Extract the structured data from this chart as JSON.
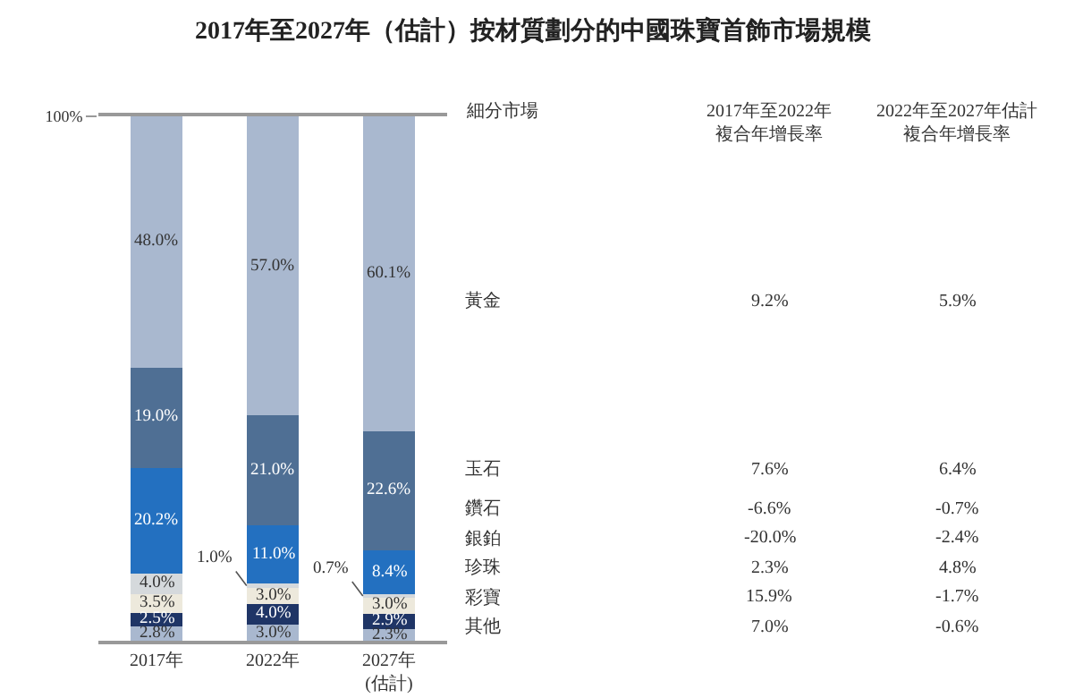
{
  "chart_data": {
    "type": "bar",
    "title": "2017年至2027年（估計）按材質劃分的中國珠寶首飾市場規模",
    "categories": [
      "2017年",
      "2022年",
      "2027年\n(估計)"
    ],
    "stacked": true,
    "series": [
      {
        "name": "其他",
        "color": "#a9b8cf",
        "values": [
          2.8,
          3.0,
          2.3
        ],
        "value_labels": [
          "2.8%",
          "3.0%",
          "2.3%"
        ]
      },
      {
        "name": "彩寶",
        "color": "#1f3566",
        "values": [
          2.5,
          4.0,
          2.9
        ],
        "value_labels": [
          "2.5%",
          "4.0%",
          "2.9%"
        ]
      },
      {
        "name": "珍珠",
        "color": "#ede9dc",
        "values": [
          3.5,
          3.0,
          3.0
        ],
        "value_labels": [
          "3.5%",
          "3.0%",
          "3.0%"
        ]
      },
      {
        "name": "銀鉑",
        "color": "#d5d9dc",
        "values": [
          4.0,
          1.0,
          0.7
        ],
        "value_labels": [
          "4.0%",
          "1.0%",
          "0.7%"
        ]
      },
      {
        "name": "鑽石",
        "color": "#2370c0",
        "values": [
          20.2,
          11.0,
          8.4
        ],
        "value_labels": [
          "20.2%",
          "11.0%",
          "8.4%"
        ]
      },
      {
        "name": "玉石",
        "color": "#4f6f94",
        "values": [
          19.0,
          21.0,
          22.6
        ],
        "value_labels": [
          "19.0%",
          "21.0%",
          "22.6%"
        ]
      },
      {
        "name": "黃金",
        "color": "#a9b8cf",
        "values": [
          48.0,
          57.0,
          60.1
        ],
        "value_labels": [
          "48.0%",
          "57.0%",
          "60.1%"
        ]
      }
    ],
    "ylim": [
      0,
      100
    ],
    "yticks": [
      {
        "value": 100,
        "label": "100%"
      }
    ],
    "legend": false,
    "annotations": [
      "細分市場",
      "2017年至2022年",
      "複合年增長率",
      "2022年至2027年估計",
      "複合年增長率",
      "9.2%",
      "5.9%",
      "7.6%",
      "6.4%",
      "-6.6%",
      "-0.7%",
      "-20.0%",
      "-2.4%",
      "2.3%",
      "4.8%",
      "15.9%",
      "-1.7%",
      "7.0%",
      "-0.6%"
    ]
  }
}
